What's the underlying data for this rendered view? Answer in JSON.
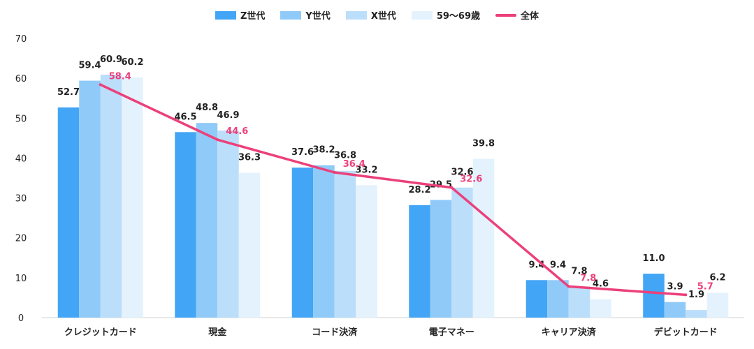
{
  "chart_data": {
    "type": "bar",
    "categories": [
      "クレジットカード",
      "現金",
      "コード決済",
      "電子マネー",
      "キャリア決済",
      "デビットカード"
    ],
    "series": [
      {
        "name": "Z世代",
        "color": "#42a5f5",
        "values": [
          52.7,
          46.5,
          37.6,
          28.2,
          9.4,
          11.0
        ],
        "labels": [
          "52.7",
          "46.5",
          "37.6",
          "28.2",
          "9.4",
          "11.0"
        ]
      },
      {
        "name": "Y世代",
        "color": "#90caf9",
        "values": [
          59.4,
          48.8,
          38.2,
          29.5,
          9.4,
          3.9
        ],
        "labels": [
          "59.4",
          "48.8",
          "38.2",
          "29.5",
          "9.4",
          "3.9"
        ]
      },
      {
        "name": "X世代",
        "color": "#bbdefb",
        "values": [
          60.9,
          46.9,
          36.8,
          32.6,
          7.8,
          1.9
        ],
        "labels": [
          "60.9",
          "46.9",
          "36.8",
          "32.6",
          "7.8",
          "1.9"
        ]
      },
      {
        "name": "59～69歳",
        "color": "#e3f2fd",
        "values": [
          60.2,
          36.3,
          33.2,
          39.8,
          4.6,
          6.2
        ],
        "labels": [
          "60.2",
          "36.3",
          "33.2",
          "39.8",
          "4.6",
          "6.2"
        ]
      }
    ],
    "line_series": {
      "name": "全体",
      "color": "#ec407a",
      "values": [
        58.4,
        44.6,
        36.4,
        32.6,
        7.8,
        5.7
      ],
      "labels": [
        "58.4",
        "44.6",
        "36.4",
        "32.6",
        "7.8",
        "5.7"
      ]
    },
    "ylim": [
      0,
      70
    ],
    "yticks": [
      "0",
      "10",
      "20",
      "30",
      "40",
      "50",
      "60",
      "70"
    ],
    "xlabel": "",
    "ylabel": "",
    "legend_position": "top-center",
    "grid": false
  }
}
